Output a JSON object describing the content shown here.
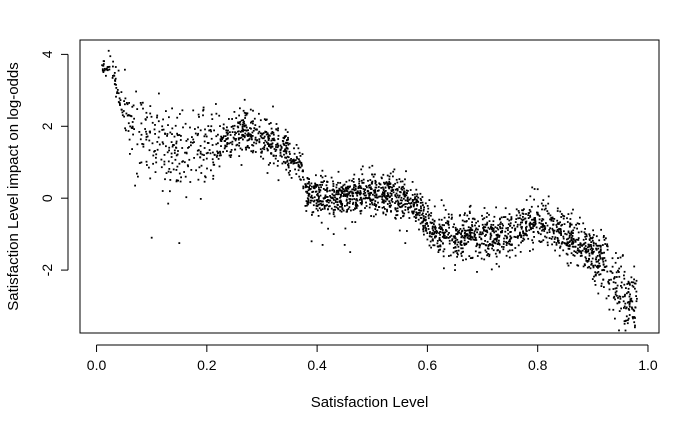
{
  "chart_data": {
    "type": "scatter",
    "title": "",
    "xlabel": "Satisfaction Level",
    "ylabel": "Satisfaction Level impact on log-odds",
    "xlim": [
      -0.03,
      1.02
    ],
    "ylim": [
      -3.75,
      4.4
    ],
    "x_ticks": [
      0.0,
      0.2,
      0.4,
      0.6,
      0.8,
      1.0
    ],
    "x_tick_labels": [
      "0.0",
      "0.2",
      "0.4",
      "0.6",
      "0.8",
      "1.0"
    ],
    "y_ticks": [
      -2,
      0,
      2,
      4
    ],
    "y_tick_labels": [
      "-2",
      "0",
      "2",
      "4"
    ],
    "grid": false,
    "legend": "none",
    "point_color": "#000000",
    "approximated": true,
    "trend": {
      "x": [
        0.0,
        0.03,
        0.05,
        0.09,
        0.15,
        0.22,
        0.27,
        0.31,
        0.35,
        0.37,
        0.38,
        0.4,
        0.45,
        0.5,
        0.55,
        0.58,
        0.6,
        0.62,
        0.7,
        0.76,
        0.8,
        0.84,
        0.88,
        0.92,
        0.95,
        0.98
      ],
      "y": [
        3.75,
        3.5,
        2.2,
        1.7,
        1.35,
        1.5,
        1.9,
        1.65,
        1.2,
        1.0,
        0.2,
        0.05,
        0.0,
        0.15,
        0.05,
        -0.2,
        -0.7,
        -1.05,
        -1.05,
        -0.9,
        -0.65,
        -0.9,
        -1.3,
        -1.8,
        -2.7,
        -3.0
      ]
    },
    "points": [
      [
        0.01,
        3.7
      ],
      [
        0.015,
        3.6
      ],
      [
        0.02,
        3.65
      ],
      [
        0.022,
        4.1
      ],
      [
        0.025,
        3.95
      ],
      [
        0.03,
        3.8
      ],
      [
        0.035,
        3.65
      ],
      [
        0.04,
        3.55
      ],
      [
        0.045,
        2.95
      ],
      [
        0.05,
        2.7
      ],
      [
        0.055,
        2.65
      ],
      [
        0.06,
        2.3
      ],
      [
        0.065,
        1.95
      ],
      [
        0.07,
        0.35
      ],
      [
        0.075,
        0.6
      ],
      [
        0.08,
        2.65
      ],
      [
        0.085,
        1.5
      ],
      [
        0.095,
        0.85
      ],
      [
        0.1,
        -1.1
      ],
      [
        0.11,
        2.3
      ],
      [
        0.12,
        0.2
      ],
      [
        0.13,
        -0.15
      ],
      [
        0.14,
        0.8
      ],
      [
        0.15,
        -1.25
      ],
      [
        0.16,
        1.0
      ],
      [
        0.17,
        0.45
      ],
      [
        0.18,
        1.8
      ],
      [
        0.19,
        0.7
      ],
      [
        0.2,
        1.1
      ],
      [
        0.21,
        2.2
      ],
      [
        0.23,
        1.95
      ],
      [
        0.25,
        2.4
      ],
      [
        0.26,
        2.5
      ],
      [
        0.27,
        2.3
      ],
      [
        0.28,
        2.1
      ],
      [
        0.3,
        1.3
      ],
      [
        0.31,
        0.7
      ],
      [
        0.32,
        2.55
      ],
      [
        0.33,
        0.5
      ],
      [
        0.34,
        1.5
      ],
      [
        0.35,
        0.65
      ],
      [
        0.36,
        0.8
      ],
      [
        0.39,
        -1.2
      ],
      [
        0.41,
        -1.3
      ],
      [
        0.42,
        -0.85
      ],
      [
        0.43,
        -1.0
      ],
      [
        0.45,
        -1.3
      ],
      [
        0.46,
        -1.5
      ],
      [
        0.48,
        0.8
      ],
      [
        0.5,
        0.9
      ],
      [
        0.52,
        0.65
      ],
      [
        0.55,
        -0.9
      ],
      [
        0.56,
        -1.25
      ],
      [
        0.58,
        -0.3
      ],
      [
        0.6,
        -1.15
      ],
      [
        0.62,
        -1.5
      ],
      [
        0.63,
        -1.95
      ],
      [
        0.65,
        -2.0
      ],
      [
        0.67,
        -1.7
      ],
      [
        0.69,
        -2.05
      ],
      [
        0.71,
        -1.55
      ],
      [
        0.73,
        -1.9
      ],
      [
        0.76,
        -1.6
      ],
      [
        0.78,
        -0.05
      ],
      [
        0.79,
        0.3
      ],
      [
        0.8,
        0.25
      ],
      [
        0.82,
        0.05
      ],
      [
        0.84,
        -1.6
      ],
      [
        0.86,
        -1.8
      ],
      [
        0.88,
        -1.6
      ],
      [
        0.9,
        -2.25
      ],
      [
        0.91,
        -2.65
      ],
      [
        0.92,
        -1.05
      ],
      [
        0.93,
        -3.1
      ],
      [
        0.94,
        -3.35
      ],
      [
        0.95,
        -2.8
      ],
      [
        0.96,
        -2.5
      ],
      [
        0.965,
        -3.35
      ],
      [
        0.97,
        -2.2
      ],
      [
        0.975,
        -3.45
      ],
      [
        0.98,
        -2.8
      ],
      [
        0.975,
        -1.9
      ]
    ]
  }
}
